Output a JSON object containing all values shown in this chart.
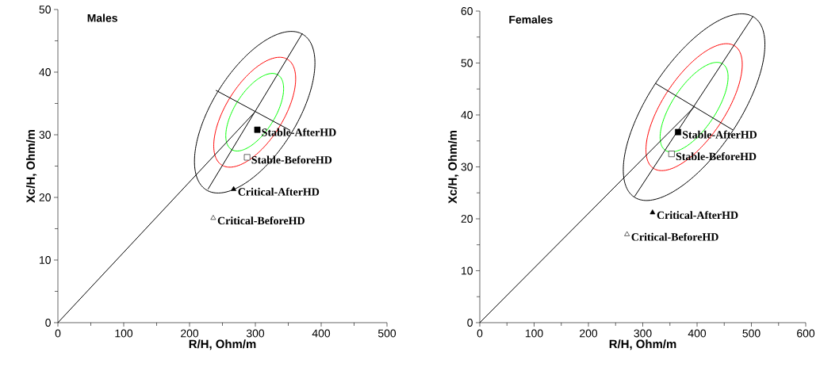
{
  "chart_data": [
    {
      "type": "scatter",
      "title": "Males",
      "xlabel": "R/H, Ohm/m",
      "ylabel": "Xc/H, Ohm/m",
      "xlim": [
        0,
        500
      ],
      "ylim": [
        0,
        50
      ],
      "xticks": [
        0,
        {
          "value": 50,
          "label": null
        },
        100,
        {
          "value": 150,
          "label": null
        },
        200,
        {
          "value": 250,
          "label": null
        },
        300,
        {
          "value": 350,
          "label": null
        },
        400,
        {
          "value": 450,
          "label": null
        },
        500
      ],
      "yticks": [
        0,
        {
          "value": 5,
          "label": null
        },
        10,
        {
          "value": 15,
          "label": null
        },
        20,
        {
          "value": 25,
          "label": null
        },
        30,
        {
          "value": 35,
          "label": null
        },
        40,
        {
          "value": 45,
          "label": null
        },
        50
      ],
      "series": [
        {
          "type": "line",
          "color": "#000000",
          "x": [
            0,
            299
          ],
          "values": [
            0,
            33.6
          ]
        },
        {
          "type": "line",
          "color": "#000000",
          "x": [
            228,
            371.5
          ],
          "values": [
            21.3,
            46.2
          ]
        },
        {
          "type": "line",
          "color": "#000000",
          "x": [
            240,
            353
          ],
          "values": [
            37.1,
            30.7
          ]
        },
        {
          "name": "Stable-AfterHD",
          "marker": "square",
          "color": "#000000",
          "x": [
            303
          ],
          "values": [
            30.8
          ]
        },
        {
          "name": "Stable-BeforeHD",
          "marker": "square",
          "color": "#ffffff",
          "x": [
            287.5
          ],
          "values": [
            26.4
          ]
        },
        {
          "name": "Critical-AfterHD",
          "marker": "triangle",
          "color": "#000000",
          "x": [
            267
          ],
          "values": [
            21.3
          ]
        },
        {
          "name": "Critical-BeforeHD",
          "marker": "triangle",
          "color": "#ffffff",
          "x": [
            236
          ],
          "values": [
            16.7
          ]
        }
      ]
    },
    {
      "type": "scatter",
      "title": "Females",
      "xlabel": "R/H, Ohm/m",
      "ylabel": "Xc/H, Ohm/m",
      "xlim": [
        0,
        600
      ],
      "ylim": [
        0,
        60
      ],
      "xticks": [
        0,
        {
          "value": 50,
          "label": null
        },
        100,
        {
          "value": 150,
          "label": null
        },
        200,
        {
          "value": 250,
          "label": null
        },
        300,
        {
          "value": 350,
          "label": null
        },
        400,
        {
          "value": 450,
          "label": null
        },
        500,
        {
          "value": 550,
          "label": null
        },
        600
      ],
      "yticks": [
        0,
        {
          "value": 5,
          "label": null
        },
        10,
        {
          "value": 15,
          "label": null
        },
        20,
        {
          "value": 25,
          "label": null
        },
        30,
        {
          "value": 35,
          "label": null
        },
        40,
        {
          "value": 45,
          "label": null
        },
        50,
        {
          "value": 55,
          "label": null
        },
        60
      ],
      "series": [
        {
          "type": "line",
          "color": "#000000",
          "x": [
            0,
            394.5
          ],
          "values": [
            0,
            41.5
          ]
        },
        {
          "type": "line",
          "color": "#000000",
          "x": [
            285,
            503
          ],
          "values": [
            24.3,
            59
          ]
        },
        {
          "type": "line",
          "color": "#000000",
          "x": [
            323,
            466
          ],
          "values": [
            46.1,
            37.1
          ]
        },
        {
          "name": "Stable-AfterHD",
          "marker": "square",
          "color": "#000000",
          "x": [
            365
          ],
          "values": [
            36.7
          ]
        },
        {
          "name": "Stable-BeforeHD",
          "marker": "square",
          "color": "#ffffff",
          "x": [
            353
          ],
          "values": [
            32.5
          ]
        },
        {
          "name": "Critical-AfterHD",
          "marker": "triangle",
          "color": "#000000",
          "x": [
            318
          ],
          "values": [
            21.2
          ]
        },
        {
          "name": "Critical-BeforeHD",
          "marker": "triangle",
          "color": "#ffffff",
          "x": [
            271
          ],
          "values": [
            17.0
          ]
        }
      ]
    }
  ]
}
